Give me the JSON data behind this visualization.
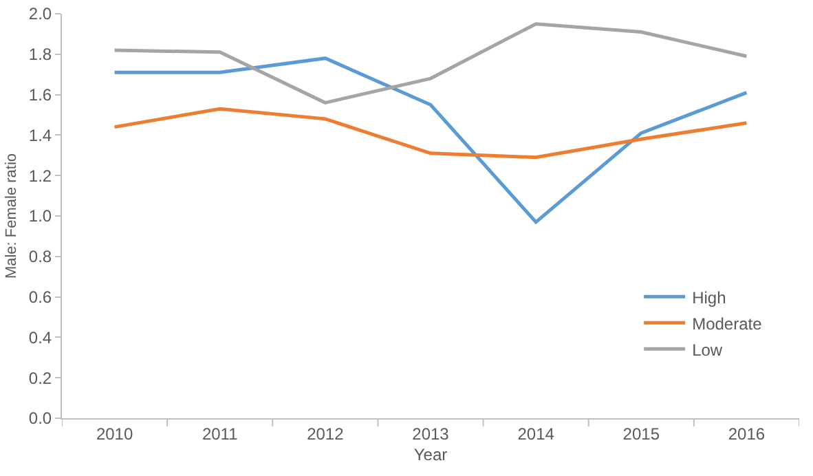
{
  "chart_data": {
    "type": "line",
    "xlabel": "Year",
    "ylabel": "Male: Female ratio",
    "categories": [
      "2010",
      "2011",
      "2012",
      "2013",
      "2014",
      "2015",
      "2016"
    ],
    "series": [
      {
        "name": "High",
        "color": "#5b9bd5",
        "values": [
          1.71,
          1.71,
          1.78,
          1.55,
          0.97,
          1.41,
          1.61
        ]
      },
      {
        "name": "Moderate",
        "color": "#ed7d31",
        "values": [
          1.44,
          1.53,
          1.48,
          1.31,
          1.29,
          1.38,
          1.46
        ]
      },
      {
        "name": "Low",
        "color": "#a5a5a5",
        "values": [
          1.82,
          1.81,
          1.56,
          1.68,
          1.95,
          1.91,
          1.79
        ]
      }
    ],
    "ylim": [
      0,
      2
    ],
    "yticks": [
      {
        "value": 0,
        "label": "0.0"
      },
      {
        "value": 0.2,
        "label": "0.2"
      },
      {
        "value": 0.4,
        "label": "0.4"
      },
      {
        "value": 0.6,
        "label": "0.6"
      },
      {
        "value": 0.8,
        "label": "0.8"
      },
      {
        "value": 1,
        "label": "1.0"
      },
      {
        "value": 1.2,
        "label": "1.2"
      },
      {
        "value": 1.4,
        "label": "1.4"
      },
      {
        "value": 1.6,
        "label": "1.6"
      },
      {
        "value": 1.8,
        "label": "1.8"
      },
      {
        "value": 2,
        "label": "2.0"
      }
    ],
    "grid": false,
    "legend": "bottom right",
    "marker": "none",
    "line_style": "solid"
  }
}
